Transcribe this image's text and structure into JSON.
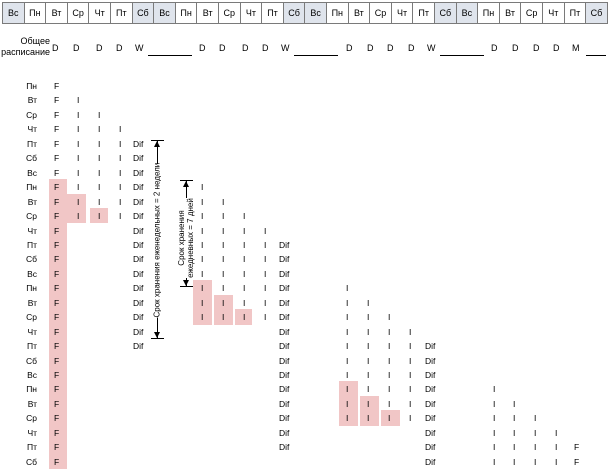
{
  "header_days": [
    "Вс",
    "Пн",
    "Вт",
    "Ср",
    "Чт",
    "Пт",
    "Сб",
    "Вс",
    "Пн",
    "Вт",
    "Ср",
    "Чт",
    "Пт",
    "Сб",
    "Вс",
    "Пн",
    "Вт",
    "Ср",
    "Чт",
    "Пт",
    "Сб",
    "Вс",
    "Пн",
    "Вт",
    "Ср",
    "Чт",
    "Пт",
    "Сб"
  ],
  "schedule_label": "Общее расписание",
  "schedule": [
    "D",
    "D",
    "D",
    "D",
    "W",
    "D",
    "D",
    "D",
    "D",
    "W",
    "D",
    "D",
    "D",
    "D",
    "W",
    "D",
    "D",
    "D",
    "D",
    "M"
  ],
  "row_days": [
    "Пн",
    "Вт",
    "Ср",
    "Чт",
    "Пт",
    "Сб",
    "Вс",
    "Пн",
    "Вт",
    "Ср",
    "Чт",
    "Пт",
    "Сб",
    "Вс",
    "Пн",
    "Вт",
    "Ср",
    "Чт",
    "Пт",
    "Сб",
    "Вс",
    "Пн",
    "Вт",
    "Ср",
    "Чт",
    "Пт",
    "Сб"
  ],
  "retention_weekly": "Срок хранения еженедельных = 2 недели",
  "retention_daily": "Срок хранения ежедневных = 7 дней",
  "cell_full": "F",
  "cell_incremental": "I",
  "cell_differential": "Dif"
}
